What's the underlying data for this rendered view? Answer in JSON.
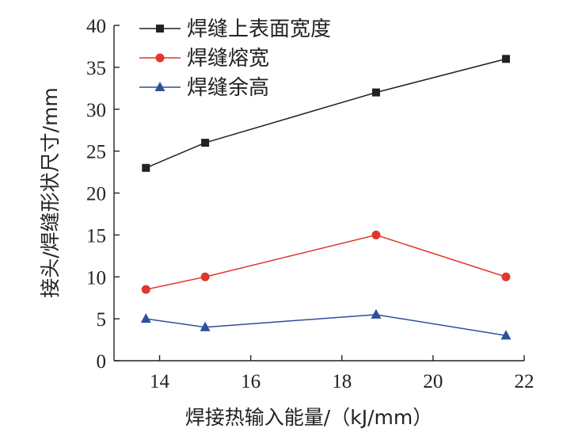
{
  "chart_data": {
    "type": "line",
    "xlabel": "焊接热输入能量/（kJ/mm）",
    "ylabel": "接头/焊缝形状尺寸/mm",
    "xlim": [
      13,
      22
    ],
    "ylim": [
      0,
      40
    ],
    "xticks": [
      14,
      16,
      18,
      20,
      22
    ],
    "yticks": [
      0,
      5,
      10,
      15,
      20,
      25,
      30,
      35,
      40
    ],
    "grid": false,
    "legend": "top-left",
    "x": [
      13.7,
      15.0,
      18.75,
      21.6
    ],
    "series": [
      {
        "name": "焊缝上表面宽度",
        "values": [
          23,
          26,
          32,
          36
        ],
        "color": "#222222",
        "marker": "square"
      },
      {
        "name": "焊缝熔宽",
        "values": [
          8.5,
          10,
          15,
          10
        ],
        "color": "#e0362c",
        "marker": "circle"
      },
      {
        "name": "焊缝余高",
        "values": [
          5,
          4,
          5.5,
          3
        ],
        "color": "#2e4f9c",
        "marker": "triangle"
      }
    ]
  }
}
